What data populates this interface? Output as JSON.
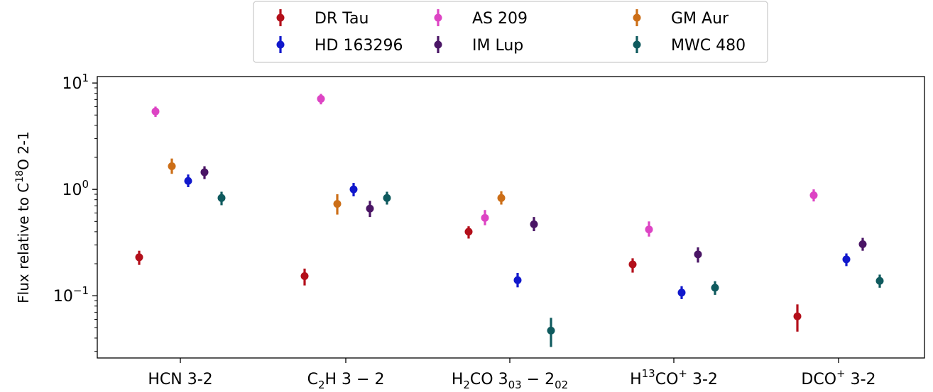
{
  "chart_data": {
    "type": "scatter",
    "y_scale": "log",
    "ylim": [
      0.026,
      11.5
    ],
    "ylabel": {
      "prefix": "Flux relative to C",
      "sup": "18",
      "suffix": "O 2-1"
    },
    "y_ticks": [
      {
        "value": 0.1,
        "base": "10",
        "exp": "−1"
      },
      {
        "value": 1,
        "base": "10",
        "exp": "0"
      },
      {
        "value": 10,
        "base": "10",
        "exp": "1"
      }
    ],
    "categories": [
      {
        "parts": [
          {
            "t": "HCN 3-2"
          }
        ]
      },
      {
        "parts": [
          {
            "t": "C"
          },
          {
            "t": "2",
            "sub": true
          },
          {
            "t": "H 3 − 2"
          }
        ]
      },
      {
        "parts": [
          {
            "t": "H"
          },
          {
            "t": "2",
            "sub": true
          },
          {
            "t": "CO 3"
          },
          {
            "t": "03",
            "sub": true
          },
          {
            "t": " − 2"
          },
          {
            "t": "02",
            "sub": true
          }
        ]
      },
      {
        "parts": [
          {
            "t": "H"
          },
          {
            "t": "13",
            "sup": true
          },
          {
            "t": "CO"
          },
          {
            "t": "+",
            "sup": true
          },
          {
            "t": " 3-2"
          }
        ]
      },
      {
        "parts": [
          {
            "t": "DCO"
          },
          {
            "t": "+",
            "sup": true
          },
          {
            "t": " 3-2"
          }
        ]
      }
    ],
    "legend_position": "top-center",
    "series": [
      {
        "name": "DR Tau",
        "color": "#b30f1a",
        "values": [
          0.23,
          0.153,
          0.4,
          0.197,
          0.064
        ],
        "err_low": [
          0.195,
          0.125,
          0.345,
          0.165,
          0.046
        ],
        "err_high": [
          0.265,
          0.18,
          0.45,
          0.225,
          0.083
        ]
      },
      {
        "name": "AS 209",
        "color": "#dd44c4",
        "values": [
          5.4,
          7.1,
          0.54,
          0.42,
          0.88
        ],
        "err_low": [
          4.8,
          6.3,
          0.46,
          0.36,
          0.77
        ],
        "err_high": [
          6.0,
          7.9,
          0.64,
          0.5,
          1.0
        ]
      },
      {
        "name": "GM Aur",
        "color": "#cc6e17",
        "values": [
          1.65,
          0.73,
          0.83,
          null,
          null
        ],
        "err_low": [
          1.4,
          0.58,
          0.72,
          null,
          null
        ],
        "err_high": [
          1.95,
          0.9,
          0.96,
          null,
          null
        ]
      },
      {
        "name": "HD 163296",
        "color": "#1118cc",
        "values": [
          1.2,
          1.0,
          0.14,
          0.107,
          0.22
        ],
        "err_low": [
          1.05,
          0.86,
          0.12,
          0.093,
          0.19
        ],
        "err_high": [
          1.38,
          1.15,
          0.164,
          0.123,
          0.25
        ]
      },
      {
        "name": "IM Lup",
        "color": "#4a1565",
        "values": [
          1.45,
          0.66,
          0.47,
          0.245,
          0.305
        ],
        "err_low": [
          1.25,
          0.55,
          0.405,
          0.205,
          0.265
        ],
        "err_high": [
          1.65,
          0.78,
          0.55,
          0.285,
          0.35
        ]
      },
      {
        "name": "MWC 480",
        "color": "#0f5a5e",
        "values": [
          0.83,
          0.83,
          0.047,
          0.119,
          0.138
        ],
        "err_low": [
          0.71,
          0.72,
          0.033,
          0.102,
          0.119
        ],
        "err_high": [
          0.95,
          0.95,
          0.062,
          0.137,
          0.158
        ]
      }
    ]
  }
}
